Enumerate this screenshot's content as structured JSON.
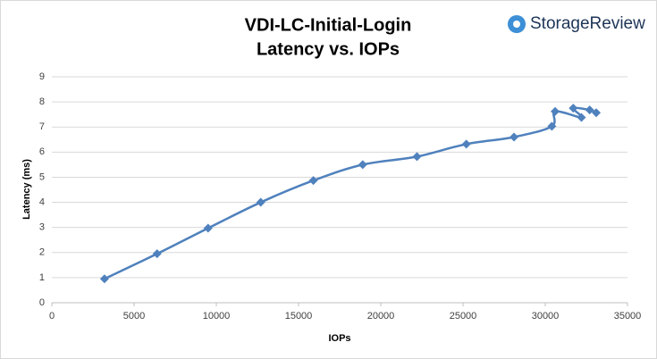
{
  "logo": "StorageReview",
  "chart_data": {
    "type": "line",
    "title": "VDI-LC-Initial-Login",
    "subtitle": "Latency vs. IOPs",
    "x_label": "IOPs",
    "y_label": "Latency (ms)",
    "x": [
      3200,
      6400,
      9500,
      12700,
      15900,
      18900,
      22200,
      25200,
      28100,
      30400,
      30600,
      32200,
      31700,
      32700,
      33100
    ],
    "values": [
      0.95,
      1.95,
      2.97,
      4.0,
      4.87,
      5.5,
      5.82,
      6.32,
      6.6,
      7.03,
      7.62,
      7.38,
      7.75,
      7.68,
      7.57
    ],
    "color": "#4f81bd",
    "markers": true,
    "xlim": [
      0,
      35000
    ],
    "xticks": [
      0,
      5000,
      10000,
      15000,
      20000,
      25000,
      30000,
      35000
    ],
    "ylim": [
      0,
      9
    ],
    "yticks": [
      0,
      1,
      2,
      3,
      4,
      5,
      6,
      7,
      8,
      9
    ],
    "grid": true
  }
}
